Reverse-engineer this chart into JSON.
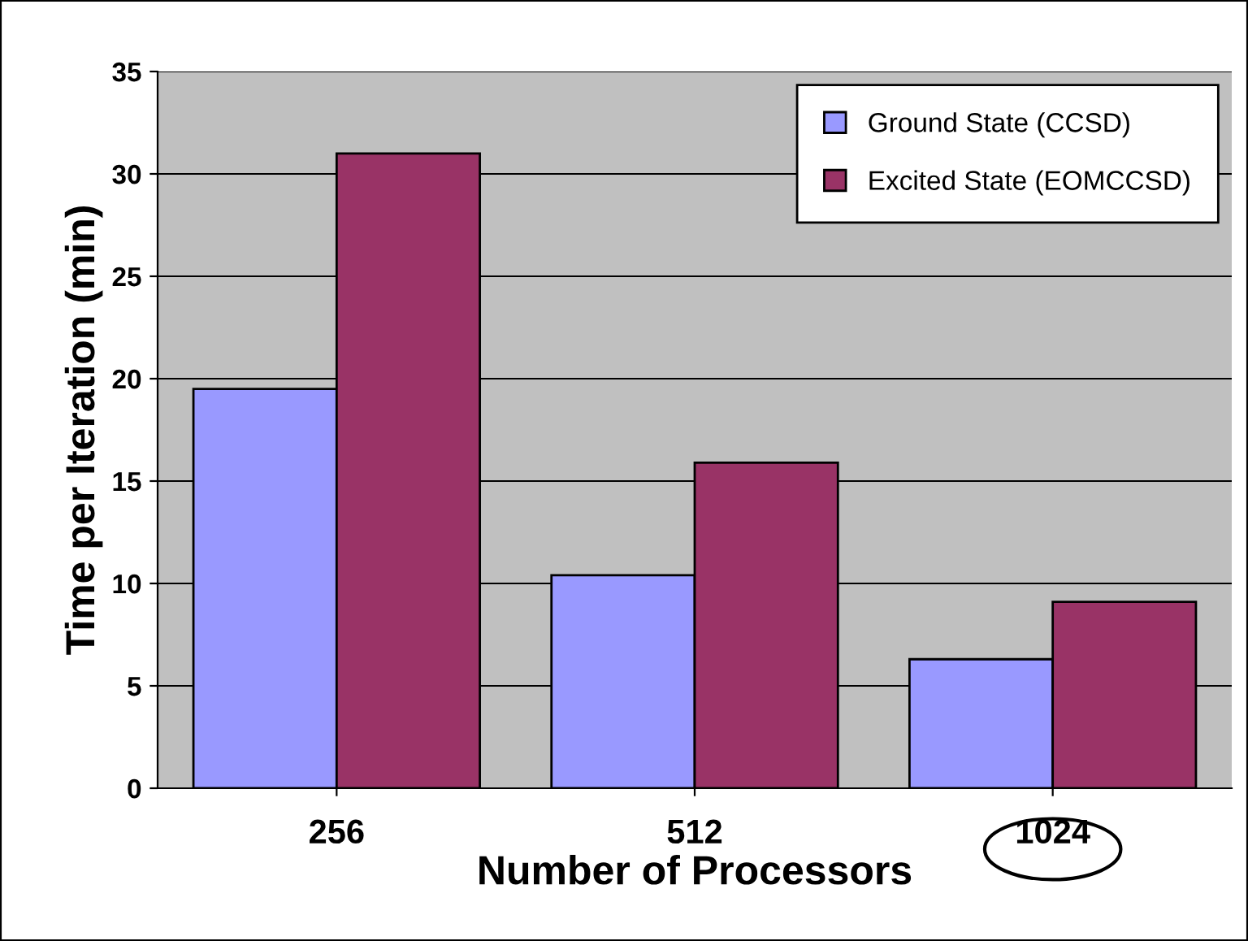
{
  "chart_data": {
    "type": "bar",
    "xlabel": "Number of Processors",
    "ylabel": "Time per Iteration (min)",
    "categories": [
      "256",
      "512",
      "1024"
    ],
    "series": [
      {
        "name": "Ground State (CCSD)",
        "color": "#9999ff",
        "values": [
          19.5,
          10.4,
          6.3
        ]
      },
      {
        "name": "Excited State (EOMCCSD)",
        "color": "#993366",
        "values": [
          31,
          15.9,
          9.1
        ]
      }
    ],
    "ylim": [
      0,
      35
    ],
    "yticks": [
      0,
      5,
      10,
      15,
      20,
      25,
      30,
      35
    ],
    "grid": "y",
    "legend": "top right"
  }
}
